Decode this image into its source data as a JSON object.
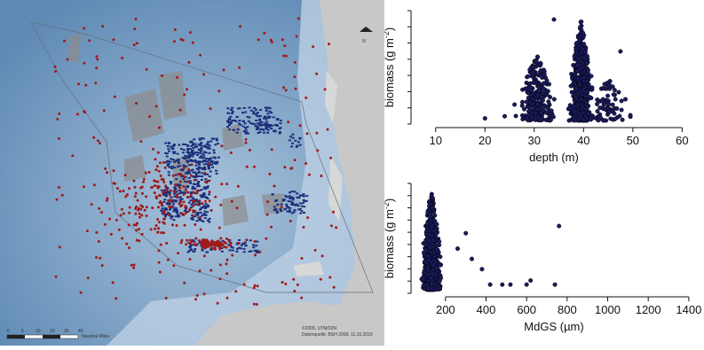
{
  "map": {
    "north_symbol": "N",
    "scale_labels": [
      "0",
      "5",
      "10",
      "20",
      "30",
      "40"
    ],
    "scale_unit": "Nautical Miles",
    "credit_lines": [
      "©2009, UTM/32N",
      "Datenquelle: BSH 2009, 11.10.2019"
    ],
    "colors": {
      "sea_deep": "#5f8ab5",
      "sea_shallow": "#a9c3db",
      "land": "#c8c8c8",
      "dots": "#a01a1a",
      "transects": "#1d2f7a",
      "windfarm": "#8c8c8c"
    }
  },
  "chart_data": [
    {
      "type": "scatter",
      "xlabel": "depth (m)",
      "ylabel": "biomass (g m",
      "ylabel_sup": "-2",
      "ylabel_end": ")",
      "xlim": [
        5,
        63
      ],
      "x_ticks": [
        10,
        20,
        30,
        40,
        50,
        60
      ],
      "y_ticks_count": 8,
      "marker_color": "#1a1a5a",
      "clusters": [
        {
          "x_center": 39.5,
          "x_spread": 1.8,
          "n": 550,
          "max_height": 0.95
        },
        {
          "x_center": 30.5,
          "x_spread": 2.8,
          "n": 250,
          "max_height": 0.62
        },
        {
          "x_center": 45,
          "x_spread": 3,
          "n": 70,
          "max_height": 0.42
        }
      ],
      "outliers": [
        {
          "x": 20,
          "y": 0.02
        },
        {
          "x": 24,
          "y": 0.04
        },
        {
          "x": 26,
          "y": 0.15
        },
        {
          "x": 34,
          "y": 0.95
        },
        {
          "x": 47.5,
          "y": 0.65
        },
        {
          "x": 48.5,
          "y": 0.2
        },
        {
          "x": 49.5,
          "y": 0.05
        }
      ]
    },
    {
      "type": "scatter",
      "xlabel": "MdGS (µm)",
      "ylabel": "biomass (g m",
      "ylabel_sup": "-2",
      "ylabel_end": ")",
      "xlim": [
        30,
        1440
      ],
      "x_ticks": [
        200,
        400,
        600,
        800,
        1000,
        1200,
        1400
      ],
      "y_ticks_count": 10,
      "marker_color": "#1a1a5a",
      "clusters": [
        {
          "x_center": 130,
          "x_spread": 35,
          "n": 650,
          "max_height": 0.98
        }
      ],
      "outliers": [
        {
          "x": 330,
          "y": 0.3
        },
        {
          "x": 380,
          "y": 0.2
        },
        {
          "x": 420,
          "y": 0.05
        },
        {
          "x": 480,
          "y": 0.05
        },
        {
          "x": 520,
          "y": 0.05
        },
        {
          "x": 600,
          "y": 0.05
        },
        {
          "x": 620,
          "y": 0.09
        },
        {
          "x": 740,
          "y": 0.05
        },
        {
          "x": 760,
          "y": 0.62
        },
        {
          "x": 300,
          "y": 0.55
        },
        {
          "x": 260,
          "y": 0.4
        }
      ]
    }
  ]
}
